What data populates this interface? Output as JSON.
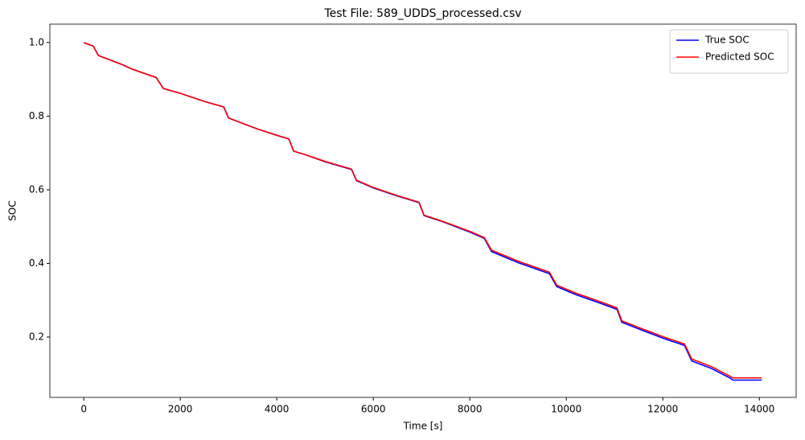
{
  "chart_data": {
    "type": "line",
    "title": "Test File: 589_UDDS_processed.csv",
    "x_label": "Time [s]",
    "y_label": "SOC",
    "x": [
      0,
      200,
      300,
      500,
      800,
      1000,
      1500,
      1550,
      1650,
      2000,
      2500,
      2900,
      3000,
      3200,
      3600,
      4000,
      4250,
      4350,
      4600,
      5000,
      5550,
      5650,
      6000,
      6500,
      6950,
      7050,
      7400,
      8000,
      8300,
      8450,
      9000,
      9650,
      9800,
      10200,
      10700,
      11050,
      11150,
      11500,
      12000,
      12450,
      12600,
      13000,
      13400,
      13450,
      14050
    ],
    "series": [
      {
        "name": "True SOC",
        "color": "#0000ff",
        "values": [
          1.0,
          0.99,
          0.965,
          0.955,
          0.94,
          0.928,
          0.905,
          0.895,
          0.875,
          0.862,
          0.84,
          0.825,
          0.795,
          0.785,
          0.765,
          0.748,
          0.738,
          0.705,
          0.695,
          0.676,
          0.655,
          0.625,
          0.605,
          0.583,
          0.565,
          0.53,
          0.515,
          0.485,
          0.468,
          0.432,
          0.402,
          0.372,
          0.337,
          0.315,
          0.292,
          0.275,
          0.24,
          0.222,
          0.197,
          0.177,
          0.135,
          0.115,
          0.088,
          0.083,
          0.083
        ]
      },
      {
        "name": "Predicted SOC",
        "color": "#ff0000",
        "values": [
          1.0,
          0.99,
          0.965,
          0.955,
          0.94,
          0.928,
          0.905,
          0.895,
          0.875,
          0.862,
          0.84,
          0.825,
          0.795,
          0.785,
          0.765,
          0.748,
          0.738,
          0.705,
          0.695,
          0.677,
          0.656,
          0.626,
          0.606,
          0.584,
          0.566,
          0.531,
          0.516,
          0.487,
          0.47,
          0.436,
          0.406,
          0.376,
          0.341,
          0.319,
          0.296,
          0.279,
          0.244,
          0.226,
          0.201,
          0.181,
          0.14,
          0.12,
          0.093,
          0.089,
          0.089
        ]
      }
    ],
    "xlim": [
      -703,
      14763
    ],
    "ylim": [
      0.036,
      1.05
    ],
    "xticks": [
      0,
      2000,
      4000,
      6000,
      8000,
      10000,
      12000,
      14000
    ],
    "yticks": [
      0.2,
      0.4,
      0.6,
      0.8,
      {
        "value": 1,
        "label": "1.0"
      }
    ],
    "grid": false,
    "legend": "upper right"
  }
}
